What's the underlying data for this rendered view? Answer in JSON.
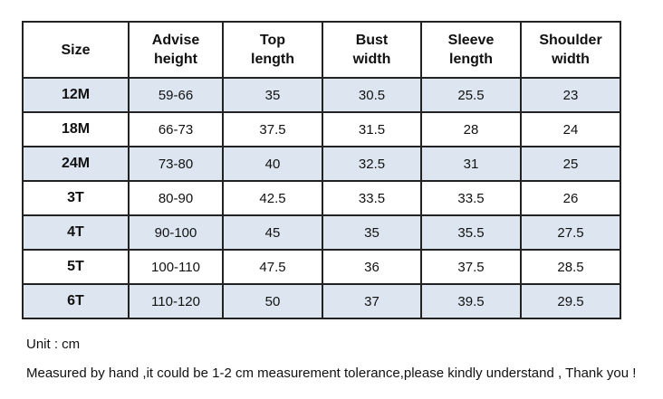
{
  "table": {
    "headers": [
      "Size",
      "Advise\nheight",
      "Top\nlength",
      "Bust\nwidth",
      "Sleeve\nlength",
      "Shoulder\nwidth"
    ],
    "rows": [
      [
        "12M",
        "59-66",
        "35",
        "30.5",
        "25.5",
        "23"
      ],
      [
        "18M",
        "66-73",
        "37.5",
        "31.5",
        "28",
        "24"
      ],
      [
        "24M",
        "73-80",
        "40",
        "32.5",
        "31",
        "25"
      ],
      [
        "3T",
        "80-90",
        "42.5",
        "33.5",
        "33.5",
        "26"
      ],
      [
        "4T",
        "90-100",
        "45",
        "35",
        "35.5",
        "27.5"
      ],
      [
        "5T",
        "100-110",
        "47.5",
        "36",
        "37.5",
        "28.5"
      ],
      [
        "6T",
        "110-120",
        "50",
        "37",
        "39.5",
        "29.5"
      ]
    ],
    "shaded_row_color": "#dde6f0"
  },
  "notes": {
    "unit": "Unit : cm",
    "tolerance": "Measured by hand ,it could be 1-2 cm measurement tolerance,please kindly understand , Thank you !"
  }
}
